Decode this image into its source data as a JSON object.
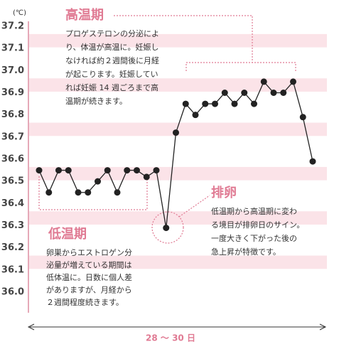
{
  "chart_data": {
    "type": "line",
    "unit_label": "(℃)",
    "categories": [
      null,
      null,
      null,
      null,
      null,
      null,
      null,
      null,
      null,
      null,
      null,
      null,
      null,
      null,
      null,
      null,
      null,
      null,
      null,
      null,
      null,
      null,
      null,
      null,
      null,
      null,
      null,
      null,
      null
    ],
    "series": [
      {
        "color": "#222222",
        "values": [
          36.55,
          36.45,
          36.55,
          36.55,
          36.45,
          36.45,
          36.5,
          36.55,
          36.45,
          36.55,
          36.55,
          36.52,
          36.55,
          36.29,
          36.72,
          36.85,
          36.8,
          36.85,
          36.85,
          36.9,
          36.85,
          36.9,
          36.85,
          36.95,
          36.9,
          36.9,
          36.95,
          36.79,
          36.59
        ]
      }
    ],
    "ylim": [
      36.0,
      37.2
    ],
    "yticks": [
      {
        "value": 36.0,
        "label": "36.0"
      },
      36.1,
      36.2,
      36.3,
      36.4,
      36.5,
      36.6,
      36.7,
      36.8,
      36.9,
      {
        "value": 37.0,
        "label": "37.0"
      },
      37.1,
      37.2
    ],
    "x_label": "28 ～ 30 日",
    "annotations": {
      "high": {
        "title": "高温期",
        "lines": [
          "プロゲステロンの分泌によ",
          "り、体温が高温に。妊娠し",
          "なければ約２週間後に月経",
          "が起こります。妊娠してい",
          "れば妊娠 14 週ごろまで高",
          "温期が続きます。"
        ]
      },
      "ovulation": {
        "title": "排卵",
        "lines": [
          "低温期から高温期に変わ",
          "る境目が排卵日のサイン。",
          "一度大きく下がった後の",
          "急上昇が特徴です。"
        ]
      },
      "low": {
        "title": "低温期",
        "lines": [
          "卵巣からエストロゲン分",
          "泌量が増えている期間は",
          "低体温に。日数に個人差",
          "がありますが、月経から",
          "２週間程度続きます。"
        ]
      }
    }
  }
}
